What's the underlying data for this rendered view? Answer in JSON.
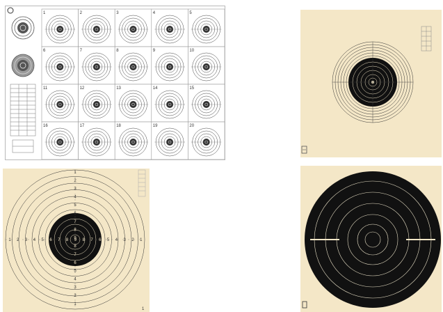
{
  "sheet": {
    "cell_numbers": [
      "1",
      "2",
      "3",
      "4",
      "5",
      "6",
      "7",
      "8",
      "9",
      "10",
      "11",
      "12",
      "13",
      "14",
      "15",
      "16",
      "17",
      "18",
      "19",
      "20"
    ]
  },
  "bottom_left": {
    "horizontal_numbers": [
      "1",
      "2",
      "3",
      "4",
      "5",
      "6",
      "7",
      "8",
      "9",
      "8",
      "7",
      "6",
      "5",
      "4",
      "3",
      "2",
      "1"
    ],
    "vertical_numbers": [
      "1",
      "2",
      "3",
      "4",
      "5",
      "6",
      "7",
      "8",
      "9",
      "8",
      "7",
      "6",
      "5",
      "4",
      "3",
      "2",
      "1"
    ],
    "corner_mark": "1"
  },
  "colors": {
    "target_paper": "#f4e7c7",
    "ink": "#111111",
    "page": "#ffffff"
  }
}
